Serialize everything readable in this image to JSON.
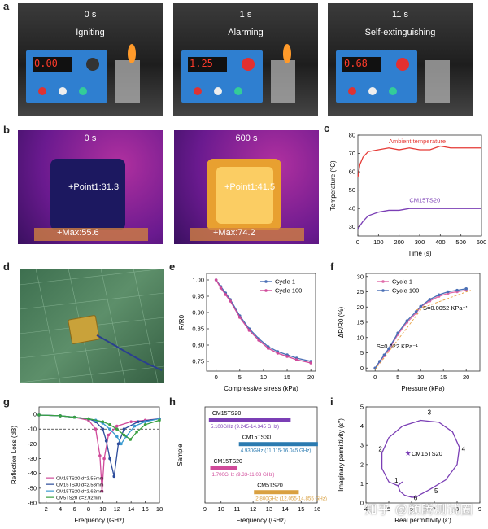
{
  "panel_a": {
    "letter": "a",
    "photos": [
      {
        "time": "0 s",
        "state": "Igniting",
        "display": "0.00"
      },
      {
        "time": "1 s",
        "state": "Alarming",
        "display": "1.25"
      },
      {
        "time": "11 s",
        "state": "Self-extinguishing",
        "display": "0.68"
      }
    ]
  },
  "panel_b": {
    "letter": "b",
    "images": [
      {
        "time": "0 s",
        "point": "+Point1:31.3",
        "max": "+Max:55.6"
      },
      {
        "time": "600 s",
        "point": "+Point1:41.5",
        "max": "+Max:74.2"
      }
    ]
  },
  "panel_d": {
    "letter": "d"
  },
  "watermark": "知乎 @颜腾测试圈",
  "chart_data": [
    {
      "id": "c",
      "letter": "c",
      "type": "line",
      "xlabel": "Time (s)",
      "ylabel": "Temperature (°C)",
      "xlim": [
        0,
        600
      ],
      "ylim": [
        25,
        80
      ],
      "xticks": [
        0,
        100,
        200,
        300,
        400,
        500,
        600
      ],
      "yticks": [
        30,
        40,
        50,
        60,
        70,
        80
      ],
      "series": [
        {
          "name": "Ambient temperature",
          "color": "#e53935",
          "x": [
            0,
            10,
            25,
            50,
            100,
            150,
            200,
            250,
            300,
            350,
            400,
            450,
            500,
            550,
            600
          ],
          "y": [
            57,
            64,
            68,
            71,
            72,
            73,
            72,
            73,
            72,
            72,
            74,
            73,
            73,
            73,
            73
          ]
        },
        {
          "name": "CM15TS20",
          "color": "#7b3fb5",
          "x": [
            0,
            25,
            50,
            100,
            150,
            200,
            250,
            300,
            350,
            400,
            450,
            500,
            550,
            600
          ],
          "y": [
            29,
            33,
            36,
            38,
            39,
            39,
            40,
            40,
            40,
            40,
            40,
            40,
            40,
            40
          ]
        }
      ]
    },
    {
      "id": "e",
      "letter": "e",
      "type": "line",
      "xlabel": "Compressive stress (kPa)",
      "ylabel": "R/R0",
      "xlim": [
        -2,
        21
      ],
      "ylim": [
        0.72,
        1.02
      ],
      "xticks": [
        0,
        5,
        10,
        15,
        20
      ],
      "yticks": [
        0.75,
        0.8,
        0.85,
        0.9,
        0.95,
        1.0
      ],
      "series": [
        {
          "name": "Cycle 1",
          "color": "#4a6fb5",
          "x": [
            0,
            1,
            2,
            3,
            5,
            7,
            9,
            11,
            13,
            15,
            17,
            20
          ],
          "y": [
            1.0,
            0.98,
            0.96,
            0.94,
            0.89,
            0.85,
            0.82,
            0.795,
            0.78,
            0.77,
            0.76,
            0.75
          ]
        },
        {
          "name": "Cycle 100",
          "color": "#d04a9a",
          "x": [
            0,
            1,
            2,
            3,
            5,
            7,
            9,
            11,
            13,
            15,
            17,
            20
          ],
          "y": [
            1.0,
            0.975,
            0.955,
            0.935,
            0.885,
            0.845,
            0.815,
            0.79,
            0.775,
            0.765,
            0.755,
            0.745
          ]
        }
      ]
    },
    {
      "id": "f",
      "letter": "f",
      "type": "line",
      "xlabel": "Pressure (kPa)",
      "ylabel": "ΔR/R0 (%)",
      "xlim": [
        -2,
        23
      ],
      "ylim": [
        -1,
        31
      ],
      "xticks": [
        0,
        5,
        10,
        15,
        20
      ],
      "yticks": [
        0,
        5,
        10,
        15,
        20,
        25,
        30
      ],
      "annotations": [
        "S=0.0052 KPa⁻¹",
        "S=0.022 KPa⁻¹"
      ],
      "series": [
        {
          "name": "Cycle 1",
          "color": "#e06aa8",
          "x": [
            0,
            1,
            2,
            3,
            5,
            7,
            9,
            10,
            12,
            14,
            16,
            18,
            20
          ],
          "y": [
            0,
            2,
            4,
            6,
            11,
            15,
            18,
            20,
            22,
            23.5,
            24.5,
            25,
            25.5
          ]
        },
        {
          "name": "Cycle 100",
          "color": "#4a6fb5",
          "x": [
            0,
            1,
            2,
            3,
            5,
            7,
            9,
            10,
            12,
            14,
            16,
            18,
            20
          ],
          "y": [
            0,
            2.2,
            4.3,
            6.4,
            11.5,
            15.5,
            18.5,
            20.2,
            22.5,
            24,
            25,
            25.5,
            26
          ]
        }
      ]
    },
    {
      "id": "g",
      "letter": "g",
      "type": "line",
      "xlabel": "Frequency (GHz)",
      "ylabel": "Reflection Loss (dB)",
      "xlim": [
        1,
        18
      ],
      "ylim": [
        -60,
        5
      ],
      "xticks": [
        2,
        4,
        6,
        8,
        10,
        12,
        14,
        16,
        18
      ],
      "yticks": [
        0,
        -10,
        -20,
        -30,
        -40,
        -50,
        -60
      ],
      "threshold": -10,
      "series": [
        {
          "name": "CM15TS20 d=2.55mm",
          "color": "#d04a9a",
          "x": [
            1,
            4,
            6,
            8,
            9,
            9.6,
            9.9,
            10.2,
            10.8,
            12,
            14,
            16,
            18
          ],
          "y": [
            -0.5,
            -1,
            -2,
            -4,
            -10,
            -28,
            -52,
            -30,
            -14,
            -8,
            -5,
            -4,
            -3
          ]
        },
        {
          "name": "CM15TS30 d=2.53mm",
          "color": "#2a4a9a",
          "x": [
            1,
            4,
            6,
            8,
            9,
            10,
            10.5,
            11,
            11.6,
            12.2,
            13,
            15,
            18
          ],
          "y": [
            -0.5,
            -1,
            -2,
            -3,
            -5,
            -10,
            -18,
            -30,
            -42,
            -20,
            -10,
            -5,
            -3
          ]
        },
        {
          "name": "CM15TS20 d=2.62mm",
          "color": "#3a9ad0",
          "x": [
            1,
            4,
            6,
            8,
            9,
            10,
            11,
            12,
            12.6,
            13.3,
            14.5,
            16,
            18
          ],
          "y": [
            -0.5,
            -1,
            -2,
            -3,
            -4,
            -6,
            -10,
            -15,
            -20,
            -15,
            -8,
            -5,
            -3
          ]
        },
        {
          "name": "CM5TS20 d=2.92mm",
          "color": "#3aa040",
          "x": [
            1,
            4,
            6,
            8,
            10,
            11,
            12,
            13,
            13.9,
            14.8,
            16,
            18
          ],
          "y": [
            -0.5,
            -1,
            -2,
            -3,
            -5,
            -7,
            -10,
            -14,
            -17,
            -12,
            -7,
            -4
          ]
        }
      ]
    },
    {
      "id": "h",
      "letter": "h",
      "type": "bar",
      "xlabel": "Frequency (GHz)",
      "ylabel": "Sample",
      "xlim": [
        9,
        16
      ],
      "xticks": [
        9,
        10,
        11,
        12,
        13,
        14,
        15,
        16
      ],
      "bars": [
        {
          "name": "CM15TS20",
          "start": 9.245,
          "end": 14.345,
          "label": "5.100GHz (9.245-14.345 GHz)",
          "color": "#7b3fb5"
        },
        {
          "name": "CM15TS30",
          "start": 11.115,
          "end": 16.045,
          "label": "4.930GHz (11.115-16.045 GHz)",
          "color": "#2a7ab0"
        },
        {
          "name": "CM15TS20",
          "start": 9.33,
          "end": 11.03,
          "label": "1.700GHz (9.33-11.03 GHz)",
          "color": "#d04a9a"
        },
        {
          "name": "CM5TS20",
          "start": 12.055,
          "end": 14.855,
          "label": "2.800GHz (12.055-14.855 GHz)",
          "color": "#d9a040"
        }
      ]
    },
    {
      "id": "i",
      "letter": "i",
      "type": "scatter",
      "xlabel": "Real permittivity (ε')",
      "ylabel": "Imaginary permittivity (ε'')",
      "xlim": [
        4,
        9
      ],
      "ylim": [
        0,
        5
      ],
      "xticks": [
        4,
        5,
        6,
        7,
        8,
        9
      ],
      "yticks": [
        0,
        1,
        2,
        3,
        4,
        5
      ],
      "legend": "CM15TS20",
      "markers": [
        "1",
        "2",
        "3",
        "4",
        "5",
        "6"
      ],
      "curve_x": [
        5.4,
        5.0,
        4.7,
        4.7,
        5.0,
        5.6,
        6.4,
        7.2,
        7.8,
        8.1,
        8.0,
        7.5,
        6.8,
        6.4,
        6.2,
        6.0,
        5.7,
        5.5,
        5.4,
        5.6
      ],
      "curve_y": [
        0.9,
        1.1,
        1.8,
        2.6,
        3.4,
        4.0,
        4.3,
        4.2,
        3.7,
        2.9,
        2.0,
        1.2,
        0.7,
        0.45,
        0.3,
        0.3,
        0.4,
        0.6,
        0.9,
        1.1
      ]
    }
  ]
}
